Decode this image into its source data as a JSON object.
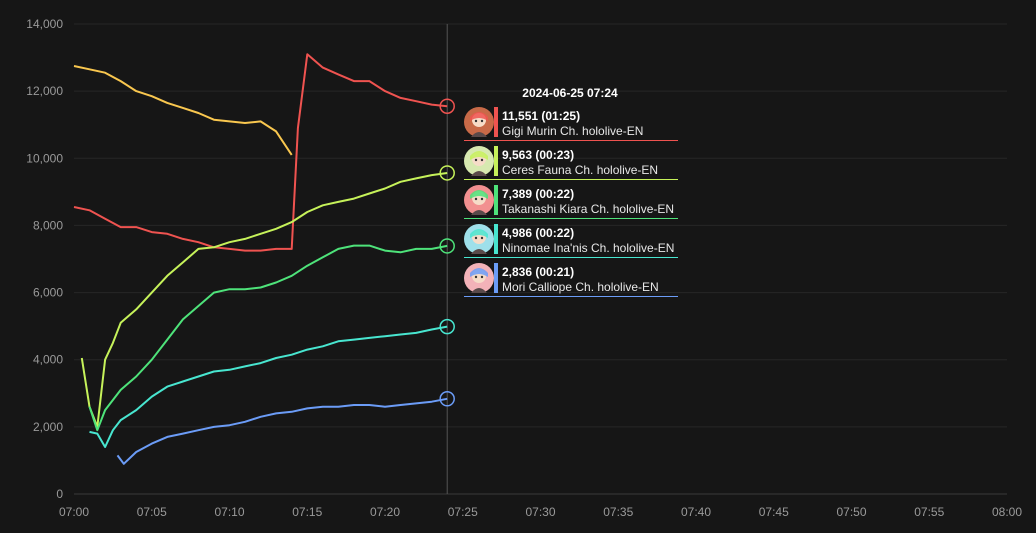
{
  "chart_data": {
    "type": "line",
    "xlim": [
      "07:00",
      "08:00"
    ],
    "ylim": [
      0,
      14000
    ],
    "y_ticks": [
      "0",
      "2,000",
      "4,000",
      "6,000",
      "8,000",
      "10,000",
      "12,000",
      "14,000"
    ],
    "x_ticks": [
      "07:00",
      "07:05",
      "07:10",
      "07:15",
      "07:20",
      "07:25",
      "07:30",
      "07:35",
      "07:40",
      "07:45",
      "07:50",
      "07:55",
      "08:00"
    ],
    "grid": true,
    "crosshair_time": "07:24",
    "series": [
      {
        "name": "Gigi Murin Ch. hololive-EN",
        "color": "#ef5350",
        "points": [
          [
            "07:00",
            8550
          ],
          [
            "07:01",
            8450
          ],
          [
            "07:02",
            8200
          ],
          [
            "07:03",
            7950
          ],
          [
            "07:04",
            7950
          ],
          [
            "07:05",
            7800
          ],
          [
            "07:06",
            7750
          ],
          [
            "07:07",
            7600
          ],
          [
            "07:08",
            7500
          ],
          [
            "07:09",
            7350
          ],
          [
            "07:10",
            7300
          ],
          [
            "07:11",
            7250
          ],
          [
            "07:12",
            7250
          ],
          [
            "07:13",
            7300
          ],
          [
            "07:14",
            7300
          ],
          [
            "07:14.4",
            10900
          ],
          [
            "07:15",
            13100
          ],
          [
            "07:16",
            12700
          ],
          [
            "07:17",
            12500
          ],
          [
            "07:18",
            12300
          ],
          [
            "07:19",
            12300
          ],
          [
            "07:20",
            12000
          ],
          [
            "07:21",
            11800
          ],
          [
            "07:22",
            11700
          ],
          [
            "07:23",
            11600
          ],
          [
            "07:24",
            11551
          ]
        ]
      },
      {
        "name": "",
        "color": "#f9c74f",
        "points": [
          [
            "07:00",
            12750
          ],
          [
            "07:01",
            12650
          ],
          [
            "07:02",
            12550
          ],
          [
            "07:03",
            12300
          ],
          [
            "07:04",
            12000
          ],
          [
            "07:05",
            11850
          ],
          [
            "07:06",
            11650
          ],
          [
            "07:07",
            11500
          ],
          [
            "07:08",
            11350
          ],
          [
            "07:09",
            11150
          ],
          [
            "07:10",
            11100
          ],
          [
            "07:11",
            11050
          ],
          [
            "07:12",
            11100
          ],
          [
            "07:13",
            10800
          ],
          [
            "07:14",
            10100
          ]
        ]
      },
      {
        "name": "Ceres Fauna Ch. hololive-EN",
        "color": "#c6f25a",
        "points": [
          [
            "07:00.5",
            4050
          ],
          [
            "07:01",
            2600
          ],
          [
            "07:01.5",
            2000
          ],
          [
            "07:02",
            4000
          ],
          [
            "07:02.5",
            4500
          ],
          [
            "07:03",
            5100
          ],
          [
            "07:04",
            5500
          ],
          [
            "07:05",
            6000
          ],
          [
            "07:06",
            6500
          ],
          [
            "07:07",
            6900
          ],
          [
            "07:08",
            7300
          ],
          [
            "07:09",
            7350
          ],
          [
            "07:10",
            7500
          ],
          [
            "07:11",
            7600
          ],
          [
            "07:12",
            7750
          ],
          [
            "07:13",
            7900
          ],
          [
            "07:14",
            8100
          ],
          [
            "07:15",
            8400
          ],
          [
            "07:16",
            8600
          ],
          [
            "07:17",
            8700
          ],
          [
            "07:18",
            8800
          ],
          [
            "07:19",
            8950
          ],
          [
            "07:20",
            9100
          ],
          [
            "07:21",
            9300
          ],
          [
            "07:22",
            9400
          ],
          [
            "07:23",
            9500
          ],
          [
            "07:24",
            9563
          ]
        ]
      },
      {
        "name": "Takanashi Kiara Ch. hololive-EN",
        "color": "#4ee37a",
        "points": [
          [
            "07:01",
            2600
          ],
          [
            "07:01.5",
            1900
          ],
          [
            "07:02",
            2500
          ],
          [
            "07:03",
            3100
          ],
          [
            "07:04",
            3500
          ],
          [
            "07:05",
            4000
          ],
          [
            "07:06",
            4600
          ],
          [
            "07:07",
            5200
          ],
          [
            "07:08",
            5600
          ],
          [
            "07:09",
            6000
          ],
          [
            "07:10",
            6100
          ],
          [
            "07:11",
            6100
          ],
          [
            "07:12",
            6150
          ],
          [
            "07:13",
            6300
          ],
          [
            "07:14",
            6500
          ],
          [
            "07:15",
            6800
          ],
          [
            "07:16",
            7050
          ],
          [
            "07:17",
            7300
          ],
          [
            "07:18",
            7400
          ],
          [
            "07:19",
            7400
          ],
          [
            "07:20",
            7250
          ],
          [
            "07:21",
            7200
          ],
          [
            "07:22",
            7300
          ],
          [
            "07:23",
            7300
          ],
          [
            "07:24",
            7389
          ]
        ]
      },
      {
        "name": "Ninomae Ina'nis Ch. hololive-EN",
        "color": "#48e6d0",
        "points": [
          [
            "07:01",
            1850
          ],
          [
            "07:01.5",
            1800
          ],
          [
            "07:02",
            1400
          ],
          [
            "07:02.5",
            1900
          ],
          [
            "07:03",
            2200
          ],
          [
            "07:04",
            2500
          ],
          [
            "07:05",
            2900
          ],
          [
            "07:06",
            3200
          ],
          [
            "07:07",
            3350
          ],
          [
            "07:08",
            3500
          ],
          [
            "07:09",
            3650
          ],
          [
            "07:10",
            3700
          ],
          [
            "07:11",
            3800
          ],
          [
            "07:12",
            3900
          ],
          [
            "07:13",
            4050
          ],
          [
            "07:14",
            4150
          ],
          [
            "07:15",
            4300
          ],
          [
            "07:16",
            4400
          ],
          [
            "07:17",
            4550
          ],
          [
            "07:18",
            4600
          ],
          [
            "07:19",
            4650
          ],
          [
            "07:20",
            4700
          ],
          [
            "07:21",
            4750
          ],
          [
            "07:22",
            4800
          ],
          [
            "07:23",
            4900
          ],
          [
            "07:24",
            4986
          ]
        ]
      },
      {
        "name": "Mori Calliope Ch. hololive-EN",
        "color": "#6b9cf7",
        "points": [
          [
            "07:02.8",
            1150
          ],
          [
            "07:03.2",
            900
          ],
          [
            "07:04",
            1250
          ],
          [
            "07:05",
            1500
          ],
          [
            "07:06",
            1700
          ],
          [
            "07:07",
            1800
          ],
          [
            "07:08",
            1900
          ],
          [
            "07:09",
            2000
          ],
          [
            "07:10",
            2050
          ],
          [
            "07:11",
            2150
          ],
          [
            "07:12",
            2300
          ],
          [
            "07:13",
            2400
          ],
          [
            "07:14",
            2450
          ],
          [
            "07:15",
            2550
          ],
          [
            "07:16",
            2600
          ],
          [
            "07:17",
            2600
          ],
          [
            "07:18",
            2650
          ],
          [
            "07:19",
            2650
          ],
          [
            "07:20",
            2600
          ],
          [
            "07:21",
            2650
          ],
          [
            "07:22",
            2700
          ],
          [
            "07:23",
            2750
          ],
          [
            "07:24",
            2836
          ]
        ]
      }
    ]
  },
  "tooltip": {
    "title": "2024-06-25 07:24",
    "rows": [
      {
        "value": "11,551",
        "duration": "(01:25)",
        "name": "Gigi Murin Ch. hololive-EN",
        "color": "#ef5350",
        "avatar_bg": "#c86a48",
        "avatar_icon": "gigi-avatar-icon"
      },
      {
        "value": "9,563",
        "duration": "(00:23)",
        "name": "Ceres Fauna Ch. hololive-EN",
        "color": "#c6f25a",
        "avatar_bg": "#d7e9b0",
        "avatar_icon": "fauna-avatar-icon"
      },
      {
        "value": "7,389",
        "duration": "(00:22)",
        "name": "Takanashi Kiara Ch. hololive-EN",
        "color": "#4ee37a",
        "avatar_bg": "#f29090",
        "avatar_icon": "kiara-avatar-icon"
      },
      {
        "value": "4,986",
        "duration": "(00:22)",
        "name": "Ninomae Ina'nis Ch. hololive-EN",
        "color": "#48e6d0",
        "avatar_bg": "#9fe0ea",
        "avatar_icon": "ina-avatar-icon"
      },
      {
        "value": "2,836",
        "duration": "(00:21)",
        "name": "Mori Calliope Ch. hololive-EN",
        "color": "#6b9cf7",
        "avatar_bg": "#f3b2b8",
        "avatar_icon": "calli-avatar-icon"
      }
    ]
  }
}
